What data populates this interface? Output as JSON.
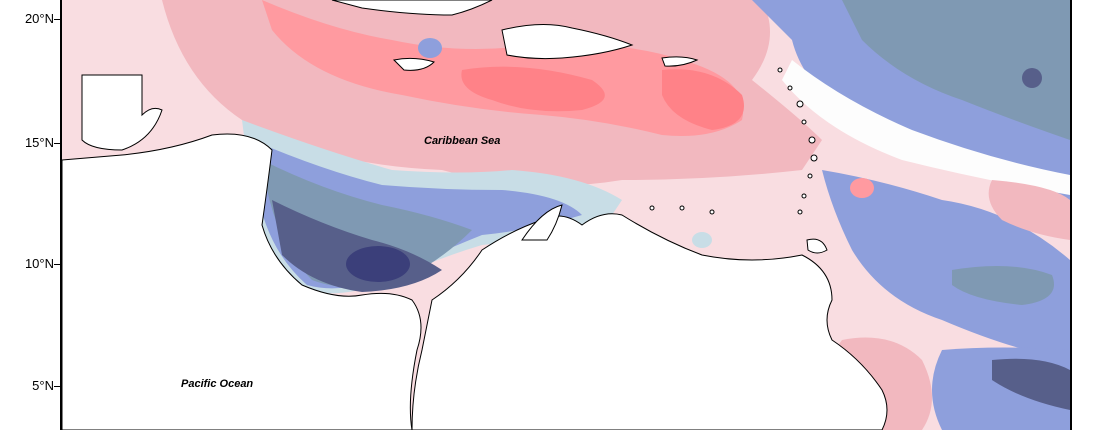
{
  "axis": {
    "y_ticks": [
      {
        "label": "20°N",
        "value": 20
      },
      {
        "label": "15°N",
        "value": 15
      },
      {
        "label": "10°N",
        "value": 10
      },
      {
        "label": "5°N",
        "value": 5
      }
    ]
  },
  "labels": {
    "sea": "Caribbean Sea",
    "ocean": "Pacific Ocean"
  },
  "colors": {
    "land": "#ffffff",
    "coast": "#000000",
    "neg_strong": "#3b3f7a",
    "neg_dark": "#575f8a",
    "neg_mid": "#7f99b3",
    "neg_light": "#8e9fdc",
    "neg_pale": "#c8dde6",
    "neutral": "#fdfdfd",
    "pos_pale": "#f9dde1",
    "pos_light": "#f2b8bf",
    "pos_mid": "#ff9aa0",
    "pos_strong": "#ff8288"
  }
}
